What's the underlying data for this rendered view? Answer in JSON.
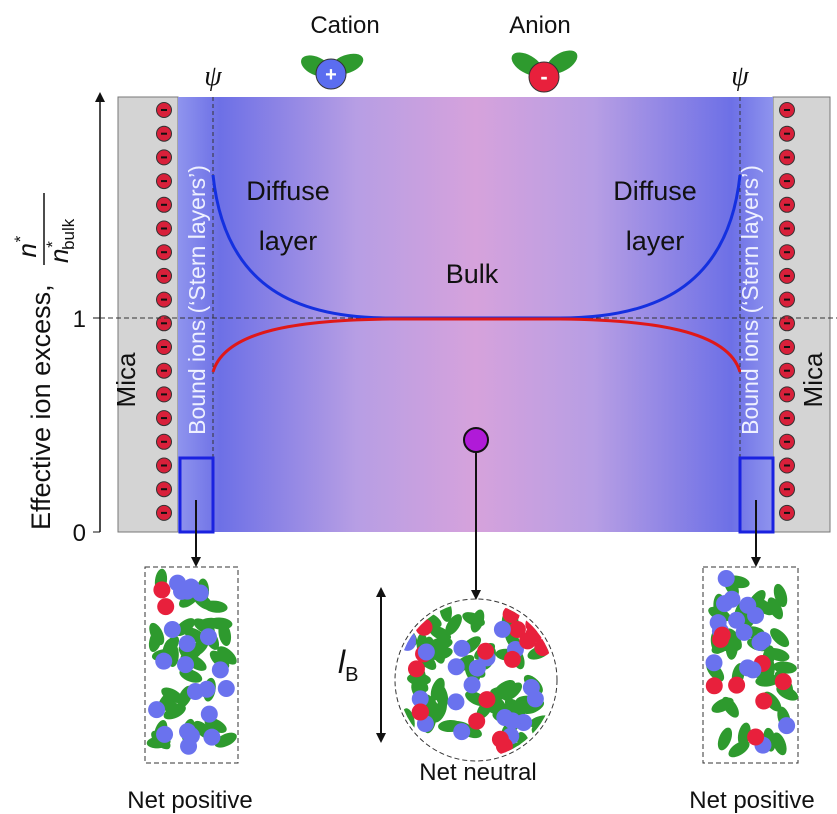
{
  "legend": {
    "cation": {
      "label": "Cation",
      "sign": "+"
    },
    "anion": {
      "label": "Anion",
      "sign": "-"
    }
  },
  "y_axis": {
    "label": "Effective ion excess,",
    "numerator": {
      "symbol": "n",
      "superscript": "*"
    },
    "denominator": {
      "symbol": "n",
      "superscript": "*",
      "subscript": "bulk"
    },
    "ticks": [
      "1",
      "0"
    ]
  },
  "potential_labels": [
    "ψ",
    "ψ"
  ],
  "walls": [
    {
      "label": "Mica"
    },
    {
      "label": "Mica"
    }
  ],
  "stern_layers": [
    "Bound ions (‘Stern layers’)",
    "Bound ions (‘Stern layers’)"
  ],
  "diffuse_layers": [
    [
      "Diffuse",
      "layer"
    ],
    [
      "Diffuse",
      "layer"
    ]
  ],
  "bulk": "Bulk",
  "insets": [
    {
      "label": "Net positive"
    },
    {
      "label": "Net neutral",
      "length_scale": {
        "symbol": "l",
        "subscript": "B"
      }
    },
    {
      "label": "Net positive"
    }
  ]
}
